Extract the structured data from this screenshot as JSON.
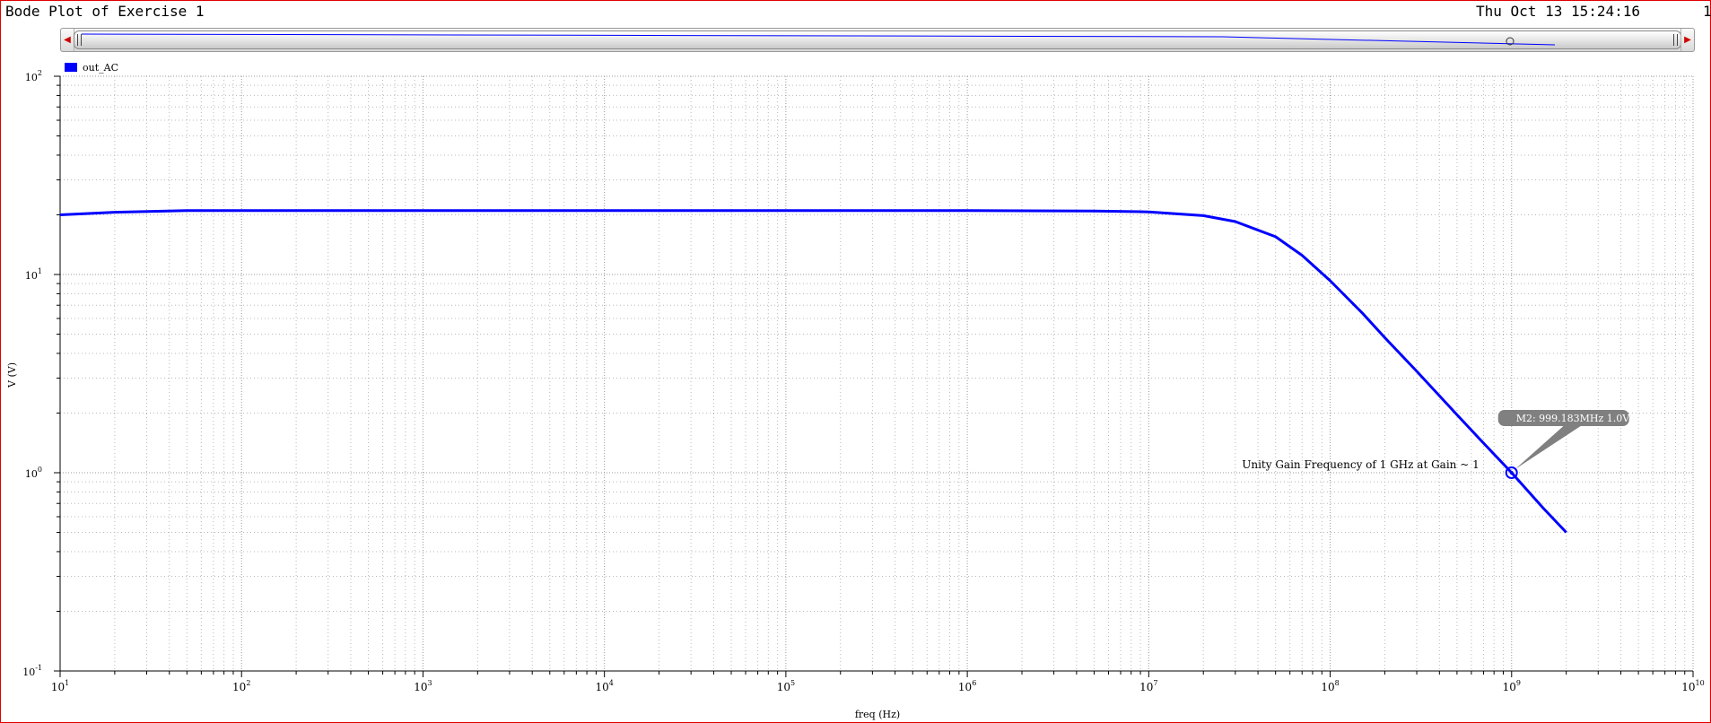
{
  "header": {
    "title": "Bode Plot of Exercise 1",
    "datetime": "Thu Oct 13 15:24:16",
    "page": "1"
  },
  "scrollbar": {
    "left_arrow_icon": "triangle-left-icon",
    "right_arrow_icon": "triangle-right-icon"
  },
  "colors": {
    "trace": "#0000ff",
    "grid": "#b8b8b8",
    "marker_bg": "#808080",
    "frame": "#e00000"
  },
  "chart_data": {
    "type": "line",
    "title": "Bode Plot of Exercise 1",
    "xlabel": "freq (Hz)",
    "ylabel": "V (V)",
    "xscale": "log",
    "yscale": "log",
    "xlim": [
      10,
      10000000000
    ],
    "ylim": [
      0.1,
      100
    ],
    "grid": true,
    "legend_position": "top-left",
    "x_ticks": [
      {
        "base": "10",
        "exp": "1"
      },
      {
        "base": "10",
        "exp": "2"
      },
      {
        "base": "10",
        "exp": "3"
      },
      {
        "base": "10",
        "exp": "4"
      },
      {
        "base": "10",
        "exp": "5"
      },
      {
        "base": "10",
        "exp": "6"
      },
      {
        "base": "10",
        "exp": "7"
      },
      {
        "base": "10",
        "exp": "8"
      },
      {
        "base": "10",
        "exp": "9"
      },
      {
        "base": "10",
        "exp": "10"
      }
    ],
    "y_ticks": [
      {
        "base": "10",
        "exp": "2"
      },
      {
        "base": "10",
        "exp": "1"
      },
      {
        "base": "10",
        "exp": "0"
      },
      {
        "base": "10",
        "exp": "-1"
      }
    ],
    "series": [
      {
        "name": "out_AC",
        "color": "#0000ff",
        "points": [
          [
            10,
            20.0
          ],
          [
            20,
            20.6
          ],
          [
            50,
            21.0
          ],
          [
            100,
            21.0
          ],
          [
            1000,
            21.0
          ],
          [
            10000,
            21.0
          ],
          [
            100000,
            21.0
          ],
          [
            1000000,
            21.0
          ],
          [
            5000000,
            20.9
          ],
          [
            10000000,
            20.7
          ],
          [
            20000000,
            19.8
          ],
          [
            30000000,
            18.5
          ],
          [
            50000000,
            15.5
          ],
          [
            70000000,
            12.5
          ],
          [
            100000000,
            9.3
          ],
          [
            150000000,
            6.4
          ],
          [
            200000000,
            4.8
          ],
          [
            300000000,
            3.25
          ],
          [
            500000000,
            1.96
          ],
          [
            700000000,
            1.41
          ],
          [
            1000000000,
            1.0
          ],
          [
            1500000000,
            0.66
          ],
          [
            2000000000,
            0.5
          ]
        ]
      }
    ],
    "marker": {
      "label": "M2: 999.183MHz 1.0V",
      "x": 999183000,
      "y": 1.0
    },
    "annotation": {
      "text": "Unity Gain Frequency of 1 GHz at Gain ~ 1",
      "x": 1000000000,
      "y": 1.0
    }
  }
}
